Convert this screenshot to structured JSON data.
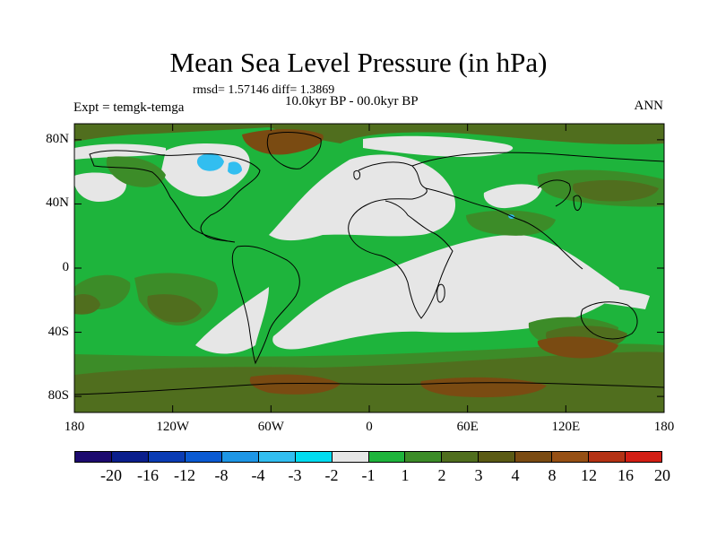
{
  "title": "Mean Sea Level Pressure (in hPa)",
  "stats": "rmsd= 1.57146 diff= 1.3869",
  "experiment": "Expt = temgk-temga",
  "period": "10.0kyr BP - 00.0kyr BP",
  "season": "ANN",
  "map": {
    "ocean_color": "#e6e6e6",
    "lat_ticks": [
      "80N",
      "40N",
      "0",
      "40S",
      "80S"
    ],
    "lat_values": [
      80,
      40,
      0,
      -40,
      -80
    ],
    "lon_ticks": [
      "180",
      "120W",
      "60W",
      "0",
      "60E",
      "120E",
      "180"
    ],
    "lon_values": [
      -180,
      -120,
      -60,
      0,
      60,
      120,
      180
    ]
  },
  "colorbar": {
    "colors": [
      "#1c0a6e",
      "#0a1e8c",
      "#0a3cb4",
      "#0a5ad2",
      "#1e96e6",
      "#32bef0",
      "#00dcf0",
      "#e6e6e6",
      "#1eb43c",
      "#3c8c28",
      "#506e1e",
      "#5a5a14",
      "#7a4b12",
      "#965014",
      "#b43214",
      "#d21e14"
    ],
    "labels": [
      "-20",
      "-16",
      "-12",
      "-8",
      "-4",
      "-3",
      "-2",
      "-1",
      "1",
      "2",
      "3",
      "4",
      "8",
      "12",
      "16",
      "20"
    ]
  },
  "legend_colors": {
    "light_green": "#1eb43c",
    "mid_green": "#3c8c28",
    "olive": "#506e1e",
    "brown": "#7a4b12",
    "cyan": "#32bef0",
    "white": "#e6e6e6"
  }
}
